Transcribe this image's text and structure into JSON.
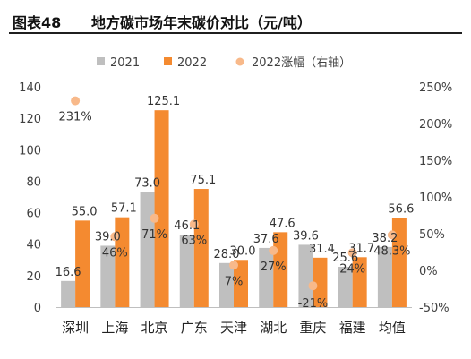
{
  "figure": {
    "number": "图表48",
    "title": "地方碳市场年末碳价对比（元/吨）"
  },
  "colors": {
    "s2021": "#bfbfbf",
    "s2022": "#f48a30",
    "growth": "#f8b98a",
    "axis": "#bfbfbf"
  },
  "chart_data": {
    "type": "bar",
    "categories": [
      "深圳",
      "上海",
      "北京",
      "广东",
      "天津",
      "湖北",
      "重庆",
      "福建",
      "均值"
    ],
    "series": [
      {
        "name": "2021",
        "kind": "bar",
        "axis": "left",
        "values": [
          16.6,
          39.0,
          73.0,
          46.1,
          28.0,
          37.6,
          39.6,
          25.6,
          38.2
        ],
        "labels": [
          "16.6",
          "39.0",
          "73.0",
          "46.1",
          "28.0",
          "37.6",
          "39.6",
          "25.6",
          "38.2"
        ]
      },
      {
        "name": "2022",
        "kind": "bar",
        "axis": "left",
        "values": [
          55.0,
          57.1,
          125.1,
          75.1,
          30.0,
          47.6,
          31.4,
          31.7,
          56.6
        ],
        "labels": [
          "55.0",
          "57.1",
          "125.1",
          "75.1",
          "30.0",
          "47.6",
          "31.4",
          "31.7",
          "56.6"
        ]
      },
      {
        "name": "2022涨幅（右轴）",
        "kind": "scatter",
        "axis": "right",
        "values": [
          231,
          46,
          71,
          63,
          7,
          27,
          -21,
          24,
          48.3
        ],
        "labels": [
          "231%",
          "46%",
          "71%",
          "63%",
          "7%",
          "27%",
          "-21%",
          "24%",
          "48.3%"
        ]
      }
    ],
    "y_left": {
      "range": [
        0,
        140
      ],
      "ticks": [
        "0",
        "20",
        "40",
        "60",
        "80",
        "100",
        "120",
        "140"
      ]
    },
    "y_right": {
      "range": [
        -50,
        250
      ],
      "ticks": [
        "-50%",
        "0%",
        "50%",
        "100%",
        "150%",
        "200%",
        "250%"
      ]
    },
    "legend": {
      "position": "top",
      "items": [
        "2021",
        "2022",
        "2022涨幅（右轴）"
      ]
    },
    "grid": false
  }
}
